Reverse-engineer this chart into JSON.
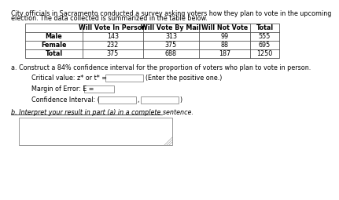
{
  "title_line1": "City officials in Sacramento conducted a survey asking voters how they plan to vote in the upcoming",
  "title_line2": "election. The data collected is summarized in the table below.",
  "table_headers": [
    "",
    "Will Vote In Person",
    "Will Vote By Mail",
    "Will Not Vote",
    "Total"
  ],
  "table_rows": [
    [
      "Male",
      "143",
      "313",
      "99",
      "555"
    ],
    [
      "Female",
      "232",
      "375",
      "88",
      "695"
    ],
    [
      "Total",
      "375",
      "688",
      "187",
      "1250"
    ]
  ],
  "part_a_text": "a. Construct a 84% confidence interval for the proportion of voters who plan to vote in person.",
  "critical_value_label": "Critical value: z* or t* =",
  "critical_value_hint": "(Enter the positive one.)",
  "margin_label": "Margin of Error: E =",
  "ci_label": "Confidence Interval: (",
  "ci_comma": ",",
  "ci_close": ")",
  "part_b_text": "b. Interpret your result in part (a) in a complete sentence.",
  "bg_color": "#ffffff",
  "font_size_title": 5.8,
  "font_size_table_header": 5.8,
  "font_size_table_data": 5.8,
  "font_size_body": 5.8
}
